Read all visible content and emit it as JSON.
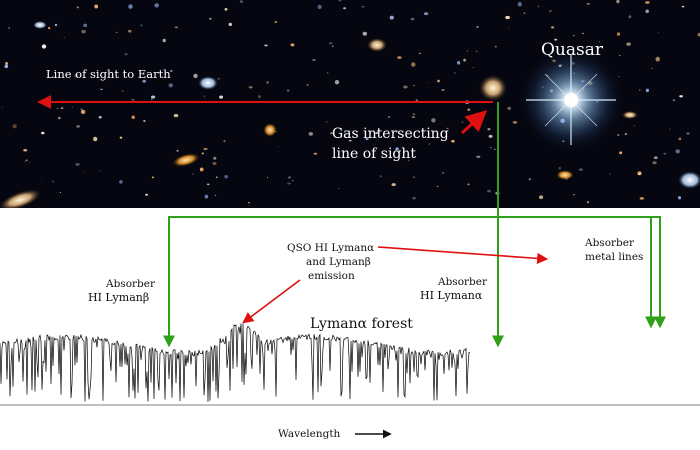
{
  "sky": {
    "quasar_label": "Quasar",
    "line_of_sight_label": "Line of sight to Earth",
    "gas_label_line1": "Gas intersecting",
    "gas_label_line2": "line of sight"
  },
  "spectrum": {
    "absorber_beta_line1": "Absorber",
    "absorber_beta_line2": "HI Lymanβ",
    "qso_emission_line1": "QSO HI Lymanα",
    "qso_emission_line2": "and Lymanβ",
    "qso_emission_line3": "emission",
    "absorber_alpha_line1": "Absorber",
    "absorber_alpha_line2": "HI Lymanα",
    "absorber_metal_line1": "Absorber",
    "absorber_metal_line2": "metal lines",
    "forest_label": "Lymanα  forest",
    "xaxis_label": "Wavelength",
    "xaxis_arrow": "⟶"
  },
  "colors": {
    "sky_background": "#05060f",
    "red_arrow": "#e01010",
    "green_line": "#2fa01a",
    "quasar_glow": "#bfe4ff",
    "spectrum": "#000000"
  }
}
